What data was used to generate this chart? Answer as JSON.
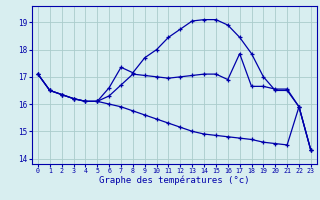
{
  "xlabel": "Graphe des températures (°c)",
  "bg_color": "#d8eef0",
  "grid_color": "#aacccc",
  "line_color": "#0000aa",
  "xlim": [
    -0.5,
    23.5
  ],
  "ylim": [
    13.8,
    19.6
  ],
  "yticks": [
    14,
    15,
    16,
    17,
    18,
    19
  ],
  "xticks": [
    0,
    1,
    2,
    3,
    4,
    5,
    6,
    7,
    8,
    9,
    10,
    11,
    12,
    13,
    14,
    15,
    16,
    17,
    18,
    19,
    20,
    21,
    22,
    23
  ],
  "series1_x": [
    0,
    1,
    2,
    3,
    4,
    5,
    6,
    7,
    8,
    9,
    10,
    11,
    12,
    13,
    14,
    15,
    16,
    17,
    18,
    19,
    20,
    21,
    22,
    23
  ],
  "series1_y": [
    17.1,
    16.5,
    16.35,
    16.2,
    16.1,
    16.1,
    16.6,
    17.35,
    17.15,
    17.7,
    18.0,
    18.45,
    18.75,
    19.05,
    19.1,
    19.1,
    18.9,
    18.45,
    17.85,
    17.0,
    16.5,
    16.5,
    15.9,
    14.3
  ],
  "series2_x": [
    0,
    1,
    2,
    3,
    4,
    5,
    6,
    7,
    8,
    9,
    10,
    11,
    12,
    13,
    14,
    15,
    16,
    17,
    18,
    19,
    20,
    21,
    22,
    23
  ],
  "series2_y": [
    17.1,
    16.5,
    16.35,
    16.2,
    16.1,
    16.1,
    16.3,
    16.7,
    17.1,
    17.05,
    17.0,
    16.95,
    17.0,
    17.05,
    17.1,
    17.1,
    16.9,
    17.85,
    16.65,
    16.65,
    16.55,
    16.55,
    15.9,
    14.3
  ],
  "series3_x": [
    0,
    1,
    2,
    3,
    4,
    5,
    6,
    7,
    8,
    9,
    10,
    11,
    12,
    13,
    14,
    15,
    16,
    17,
    18,
    19,
    20,
    21,
    22,
    23
  ],
  "series3_y": [
    17.1,
    16.5,
    16.35,
    16.2,
    16.1,
    16.1,
    16.0,
    15.9,
    15.75,
    15.6,
    15.45,
    15.3,
    15.15,
    15.0,
    14.9,
    14.85,
    14.8,
    14.75,
    14.7,
    14.6,
    14.55,
    14.5,
    15.9,
    14.3
  ]
}
